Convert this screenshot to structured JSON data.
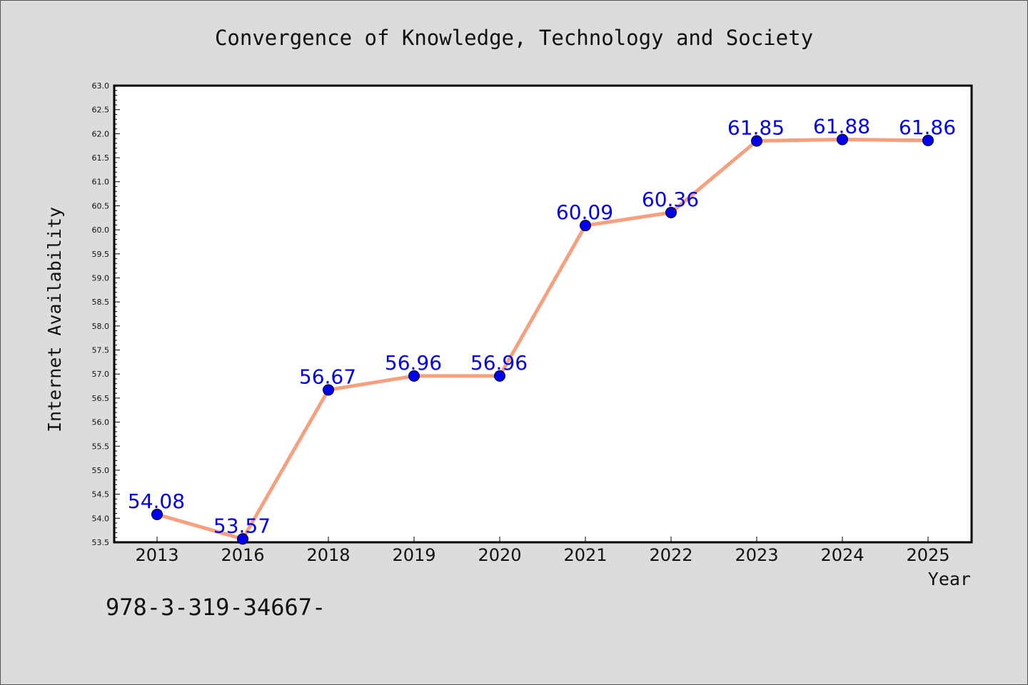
{
  "chart_data": {
    "type": "line",
    "title": "Convergence of Knowledge, Technology and Society",
    "xlabel": "Year",
    "ylabel": "Internet Availability",
    "categories": [
      "2013",
      "2016",
      "2018",
      "2019",
      "2020",
      "2021",
      "2022",
      "2023",
      "2024",
      "2025"
    ],
    "series": [
      {
        "values": [
          54.08,
          53.57,
          56.67,
          56.96,
          56.96,
          60.09,
          60.36,
          61.85,
          61.88,
          61.86
        ],
        "data_labels": [
          "54.08",
          "53.57",
          "56.67",
          "56.96",
          "56.96",
          "60.09",
          "60.36",
          "61.85",
          "61.88",
          "61.86"
        ],
        "line_color": "#f5a07f",
        "marker_color": "#0000ee",
        "label_color": "#0000ee"
      }
    ],
    "ylim": [
      53.5,
      63.0
    ],
    "yticks": [
      "53.5",
      "54.0",
      "54.5",
      "55.0",
      "55.5",
      "56.0",
      "56.5",
      "57.0",
      "57.5",
      "58.0",
      "58.5",
      "59.0",
      "59.5",
      "60.0",
      "60.5",
      "61.0",
      "61.5",
      "62.0",
      "62.5",
      "63.0"
    ],
    "grid": false,
    "legend": "none"
  },
  "footer": {
    "isbn_text": "978-3-319-34667-"
  },
  "colors": {
    "background": "#dcdcdc",
    "plot_background": "#ffffff",
    "axis": "#000000"
  }
}
